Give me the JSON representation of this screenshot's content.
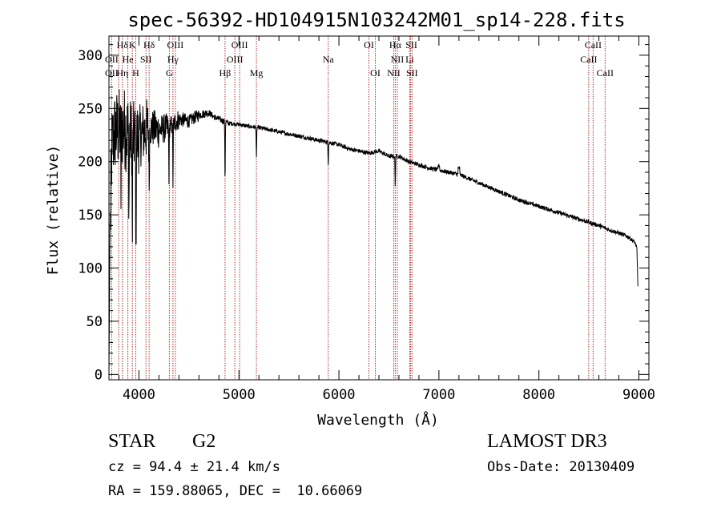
{
  "chart_data": {
    "type": "line",
    "title": "spec-56392-HD104915N103242M01_sp14-228.fits",
    "xlabel": "Wavelength (Å)",
    "ylabel": "Flux (relative)",
    "xlim": [
      3700,
      9100
    ],
    "ylim": [
      -5,
      318
    ],
    "xticks": [
      4000,
      5000,
      6000,
      7000,
      8000,
      9000
    ],
    "yticks": [
      0,
      50,
      100,
      150,
      200,
      250,
      300
    ],
    "grid": false,
    "series": [
      {
        "name": "flux",
        "anchors_x": [
          3700,
          3710,
          3730,
          3760,
          3800,
          3850,
          3900,
          3950,
          4000,
          4050,
          4100,
          4200,
          4300,
          4400,
          4500,
          4600,
          4700,
          4750,
          4800,
          4900,
          5000,
          5100,
          5200,
          5300,
          5400,
          5500,
          5600,
          5700,
          5800,
          5900,
          6000,
          6100,
          6200,
          6300,
          6400,
          6500,
          6600,
          6700,
          6800,
          6900,
          7000,
          7100,
          7200,
          7300,
          7400,
          7500,
          7600,
          7700,
          7800,
          7900,
          8000,
          8100,
          8200,
          8300,
          8400,
          8500,
          8600,
          8700,
          8800,
          8900,
          8960,
          8980,
          8990
        ],
        "anchors_y": [
          0,
          130,
          215,
          228,
          230,
          232,
          226,
          222,
          223,
          228,
          232,
          230,
          232,
          240,
          238,
          244,
          246,
          242,
          240,
          236,
          235,
          233,
          232,
          230,
          228,
          226,
          224,
          222,
          220,
          218,
          216,
          212,
          210,
          208,
          210,
          205,
          205,
          200,
          197,
          194,
          192,
          190,
          188,
          184,
          180,
          176,
          172,
          168,
          164,
          161,
          158,
          155,
          152,
          149,
          146,
          143,
          140,
          136,
          133,
          129,
          124,
          118,
          82
        ],
        "noise_amplitude": [
          40,
          40,
          35,
          30,
          18,
          14,
          10,
          7,
          6,
          4,
          3,
          3,
          2,
          2,
          2,
          2,
          2,
          2,
          2,
          2,
          2,
          2
        ],
        "absorption_dips": [
          {
            "wavelength": 3820,
            "depth": 60
          },
          {
            "wavelength": 3900,
            "depth": 70
          },
          {
            "wavelength": 3934,
            "depth": 100
          },
          {
            "wavelength": 3970,
            "depth": 120
          },
          {
            "wavelength": 4102,
            "depth": 55
          },
          {
            "wavelength": 4300,
            "depth": 45
          },
          {
            "wavelength": 4340,
            "depth": 55
          },
          {
            "wavelength": 4861,
            "depth": 55
          },
          {
            "wavelength": 5175,
            "depth": 30
          },
          {
            "wavelength": 5893,
            "depth": 20
          },
          {
            "wavelength": 6563,
            "depth": 30
          }
        ]
      }
    ],
    "line_labels": [
      {
        "text": "Hδ",
        "x": 3835,
        "row": 1
      },
      {
        "text": "K",
        "x": 3934,
        "row": 1
      },
      {
        "text": "Hδ",
        "x": 4102,
        "row": 1
      },
      {
        "text": "OIII",
        "x": 4364,
        "row": 1
      },
      {
        "text": "OIII",
        "x": 5007,
        "row": 1
      },
      {
        "text": "OI",
        "x": 6300,
        "row": 1
      },
      {
        "text": "Hα",
        "x": 6563,
        "row": 1
      },
      {
        "text": "SII",
        "x": 6725,
        "row": 1
      },
      {
        "text": "CaII",
        "x": 8542,
        "row": 1
      },
      {
        "text": "OII",
        "x": 3727,
        "row": 2
      },
      {
        "text": "He",
        "x": 3889,
        "row": 2
      },
      {
        "text": "SII",
        "x": 4070,
        "row": 2
      },
      {
        "text": "Hγ",
        "x": 4340,
        "row": 2
      },
      {
        "text": "OIII",
        "x": 4959,
        "row": 2
      },
      {
        "text": "Na",
        "x": 5893,
        "row": 2
      },
      {
        "text": "NII",
        "x": 6584,
        "row": 2
      },
      {
        "text": "Li",
        "x": 6708,
        "row": 2
      },
      {
        "text": "CaII",
        "x": 8498,
        "row": 2
      },
      {
        "text": "OII",
        "x": 3727,
        "row": 3
      },
      {
        "text": "Hη",
        "x": 3835,
        "row": 3
      },
      {
        "text": "H",
        "x": 3968,
        "row": 3
      },
      {
        "text": "G",
        "x": 4304,
        "row": 3
      },
      {
        "text": "Hβ",
        "x": 4861,
        "row": 3
      },
      {
        "text": "Mg",
        "x": 5175,
        "row": 3
      },
      {
        "text": "OI",
        "x": 6364,
        "row": 3
      },
      {
        "text": "NII",
        "x": 6548,
        "row": 3
      },
      {
        "text": "SII",
        "x": 6731,
        "row": 3
      },
      {
        "text": "CaII",
        "x": 8662,
        "row": 3
      }
    ],
    "line_markers": [
      3727,
      3798,
      3835,
      3889,
      3934,
      3968,
      4070,
      4102,
      4304,
      4340,
      4364,
      4861,
      4959,
      5007,
      5175,
      5893,
      6300,
      6364,
      6548,
      6563,
      6584,
      6708,
      6717,
      6731,
      8498,
      8542,
      8662
    ],
    "colors": {
      "spectrum": "#000000",
      "marker": "#b03030",
      "axis": "#000000"
    }
  },
  "info": {
    "object_class": "STAR",
    "subclass": "G2",
    "survey": "LAMOST DR3",
    "redshift": "cz = 94.4 ± 21.4 km/s",
    "obs_date": "Obs-Date: 20130409",
    "coords": "RA = 159.88065, DEC =  10.66069"
  }
}
